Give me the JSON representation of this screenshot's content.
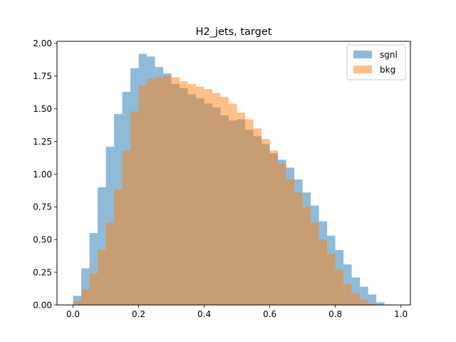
{
  "chart_data": {
    "type": "bar",
    "title": "H2_jets, target",
    "xlabel": "",
    "ylabel": "",
    "xlim": [
      -0.049,
      1.029
    ],
    "ylim": [
      0,
      2.016
    ],
    "bin_width": 0.025,
    "x_ticks": [
      0.0,
      0.2,
      0.4,
      0.6,
      0.8,
      1.0
    ],
    "x_tick_labels": [
      "0.0",
      "0.2",
      "0.4",
      "0.6",
      "0.8",
      "1.0"
    ],
    "y_ticks": [
      0.0,
      0.25,
      0.5,
      0.75,
      1.0,
      1.25,
      1.5,
      1.75,
      2.0
    ],
    "y_tick_labels": [
      "0.00",
      "0.25",
      "0.50",
      "0.75",
      "1.00",
      "1.25",
      "1.50",
      "1.75",
      "2.00"
    ],
    "legend_position": "top-right",
    "series": [
      {
        "name": "sgnl",
        "color": "#1f77b4",
        "opacity": 0.5,
        "bin_start": 0.0,
        "values": [
          0.07,
          0.28,
          0.55,
          0.9,
          1.21,
          1.46,
          1.63,
          1.81,
          1.92,
          1.9,
          1.82,
          1.77,
          1.69,
          1.66,
          1.61,
          1.58,
          1.54,
          1.51,
          1.45,
          1.41,
          1.42,
          1.34,
          1.29,
          1.23,
          1.16,
          1.11,
          1.05,
          0.96,
          0.86,
          0.76,
          0.64,
          0.53,
          0.42,
          0.31,
          0.21,
          0.14,
          0.08,
          0.02,
          0.0,
          0.0
        ]
      },
      {
        "name": "bkg",
        "color": "#ff7f0e",
        "opacity": 0.5,
        "bin_start": 0.0,
        "values": [
          0.03,
          0.12,
          0.24,
          0.42,
          0.63,
          0.88,
          1.18,
          1.48,
          1.68,
          1.73,
          1.74,
          1.75,
          1.74,
          1.71,
          1.69,
          1.67,
          1.65,
          1.62,
          1.59,
          1.54,
          1.47,
          1.42,
          1.35,
          1.27,
          1.18,
          1.08,
          0.96,
          0.86,
          0.75,
          0.63,
          0.5,
          0.39,
          0.27,
          0.16,
          0.09,
          0.04,
          0.01,
          0.0,
          0.0,
          0.0
        ]
      }
    ]
  }
}
